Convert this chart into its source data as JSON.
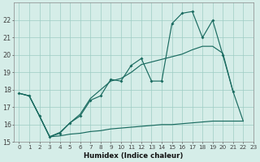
{
  "xlabel": "Humidex (Indice chaleur)",
  "xlim": [
    -0.5,
    23
  ],
  "ylim": [
    15,
    23
  ],
  "yticks": [
    15,
    16,
    17,
    18,
    19,
    20,
    21,
    22
  ],
  "xticks": [
    0,
    1,
    2,
    3,
    4,
    5,
    6,
    7,
    8,
    9,
    10,
    11,
    12,
    13,
    14,
    15,
    16,
    17,
    18,
    19,
    20,
    21,
    22,
    23
  ],
  "bg_color": "#d5ede8",
  "grid_color": "#9eccc4",
  "line_color": "#1a6b60",
  "line1": [
    [
      0,
      17.8
    ],
    [
      1,
      17.65
    ],
    [
      2,
      16.5
    ],
    [
      3,
      15.3
    ],
    [
      4,
      15.5
    ],
    [
      5,
      16.1
    ],
    [
      6,
      16.5
    ],
    [
      7,
      17.4
    ],
    [
      8,
      17.65
    ],
    [
      9,
      18.6
    ],
    [
      10,
      18.5
    ],
    [
      11,
      19.4
    ],
    [
      12,
      19.8
    ],
    [
      13,
      18.5
    ],
    [
      14,
      18.5
    ],
    [
      15,
      21.8
    ],
    [
      16,
      22.4
    ],
    [
      17,
      22.5
    ],
    [
      18,
      21.0
    ],
    [
      19,
      22.0
    ],
    [
      20,
      20.0
    ],
    [
      21,
      17.9
    ]
  ],
  "line2": [
    [
      0,
      17.8
    ],
    [
      1,
      17.65
    ],
    [
      2,
      16.5
    ],
    [
      3,
      15.3
    ],
    [
      4,
      15.55
    ],
    [
      5,
      16.1
    ],
    [
      6,
      16.6
    ],
    [
      7,
      17.5
    ],
    [
      8,
      18.0
    ],
    [
      9,
      18.5
    ],
    [
      10,
      18.65
    ],
    [
      11,
      19.0
    ],
    [
      12,
      19.45
    ],
    [
      13,
      19.6
    ],
    [
      14,
      19.75
    ],
    [
      15,
      19.9
    ],
    [
      16,
      20.05
    ],
    [
      17,
      20.3
    ],
    [
      18,
      20.5
    ],
    [
      19,
      20.5
    ],
    [
      20,
      20.1
    ],
    [
      21,
      17.9
    ],
    [
      22,
      16.2
    ]
  ],
  "line3": [
    [
      0,
      17.8
    ],
    [
      1,
      17.65
    ],
    [
      2,
      16.5
    ],
    [
      3,
      15.3
    ],
    [
      4,
      15.35
    ],
    [
      5,
      15.45
    ],
    [
      6,
      15.5
    ],
    [
      7,
      15.6
    ],
    [
      8,
      15.65
    ],
    [
      9,
      15.75
    ],
    [
      10,
      15.8
    ],
    [
      11,
      15.85
    ],
    [
      12,
      15.9
    ],
    [
      13,
      15.95
    ],
    [
      14,
      16.0
    ],
    [
      15,
      16.0
    ],
    [
      16,
      16.05
    ],
    [
      17,
      16.1
    ],
    [
      18,
      16.15
    ],
    [
      19,
      16.2
    ],
    [
      20,
      16.2
    ],
    [
      21,
      16.2
    ],
    [
      22,
      16.2
    ]
  ]
}
